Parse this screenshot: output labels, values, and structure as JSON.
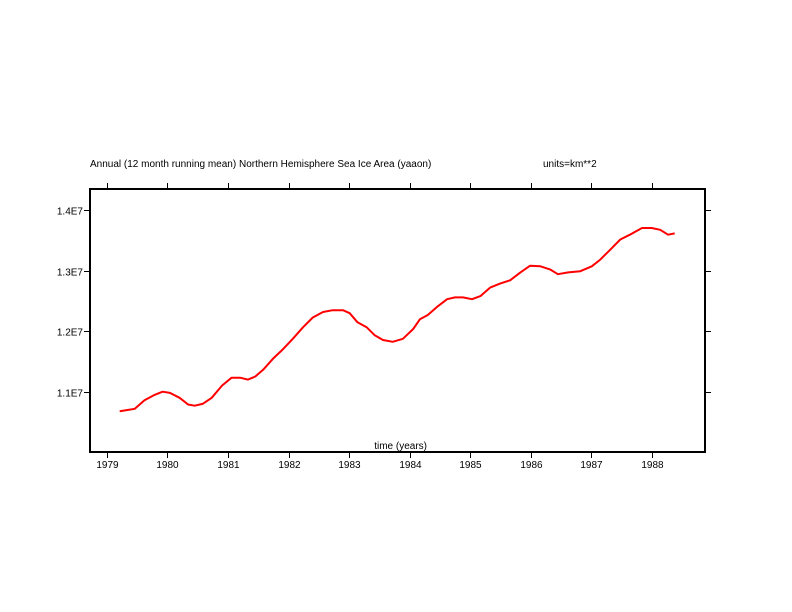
{
  "chart_data": {
    "type": "line",
    "title": "Annual (12 month running mean) Northern Hemisphere Sea Ice Area (yaaon)",
    "units_label": "units=km**2",
    "xlabel": "time (years)",
    "ylabel": "",
    "xlim": [
      1978.72,
      1988.88
    ],
    "ylim": [
      10020000,
      14340000
    ],
    "x_ticks": [
      1979,
      1980,
      1981,
      1982,
      1983,
      1984,
      1985,
      1986,
      1987,
      1988
    ],
    "x_tick_labels": [
      "1979",
      "1980",
      "1981",
      "1982",
      "1983",
      "1984",
      "1985",
      "1986",
      "1987",
      "1988"
    ],
    "y_ticks": [
      11000000,
      12000000,
      13000000,
      14000000
    ],
    "y_tick_labels": [
      "1.1E7",
      "1.2E7",
      "1.3E7",
      "1.4E7"
    ],
    "grid": false,
    "series": [
      {
        "name": "yaaon",
        "color": "#ff0000",
        "x": [
          1979.21,
          1979.34,
          1979.46,
          1979.62,
          1979.79,
          1979.92,
          1980.04,
          1980.2,
          1980.34,
          1980.45,
          1980.58,
          1980.73,
          1980.9,
          1981.06,
          1981.2,
          1981.33,
          1981.45,
          1981.58,
          1981.74,
          1981.91,
          1982.07,
          1982.24,
          1982.4,
          1982.57,
          1982.73,
          1982.9,
          1983.01,
          1983.14,
          1983.29,
          1983.42,
          1983.56,
          1983.72,
          1983.89,
          1984.06,
          1984.17,
          1984.3,
          1984.45,
          1984.62,
          1984.75,
          1984.88,
          1985.03,
          1985.17,
          1985.33,
          1985.5,
          1985.66,
          1985.83,
          1985.99,
          1986.16,
          1986.32,
          1986.45,
          1986.62,
          1986.82,
          1987.01,
          1987.15,
          1987.31,
          1987.48,
          1987.64,
          1987.84,
          1988.0,
          1988.14,
          1988.27,
          1988.38
        ],
        "y": [
          10690000,
          10710000,
          10730000,
          10870000,
          10960000,
          11010000,
          10990000,
          10910000,
          10800000,
          10780000,
          10810000,
          10910000,
          11110000,
          11240000,
          11240000,
          11210000,
          11260000,
          11370000,
          11550000,
          11710000,
          11880000,
          12070000,
          12230000,
          12320000,
          12350000,
          12350000,
          12300000,
          12150000,
          12070000,
          11940000,
          11860000,
          11830000,
          11880000,
          12040000,
          12200000,
          12270000,
          12400000,
          12530000,
          12560000,
          12560000,
          12530000,
          12580000,
          12720000,
          12790000,
          12840000,
          12970000,
          13080000,
          13070000,
          13020000,
          12940000,
          12970000,
          12990000,
          13070000,
          13180000,
          13340000,
          13510000,
          13590000,
          13700000,
          13700000,
          13670000,
          13590000,
          13610000
        ]
      }
    ]
  }
}
